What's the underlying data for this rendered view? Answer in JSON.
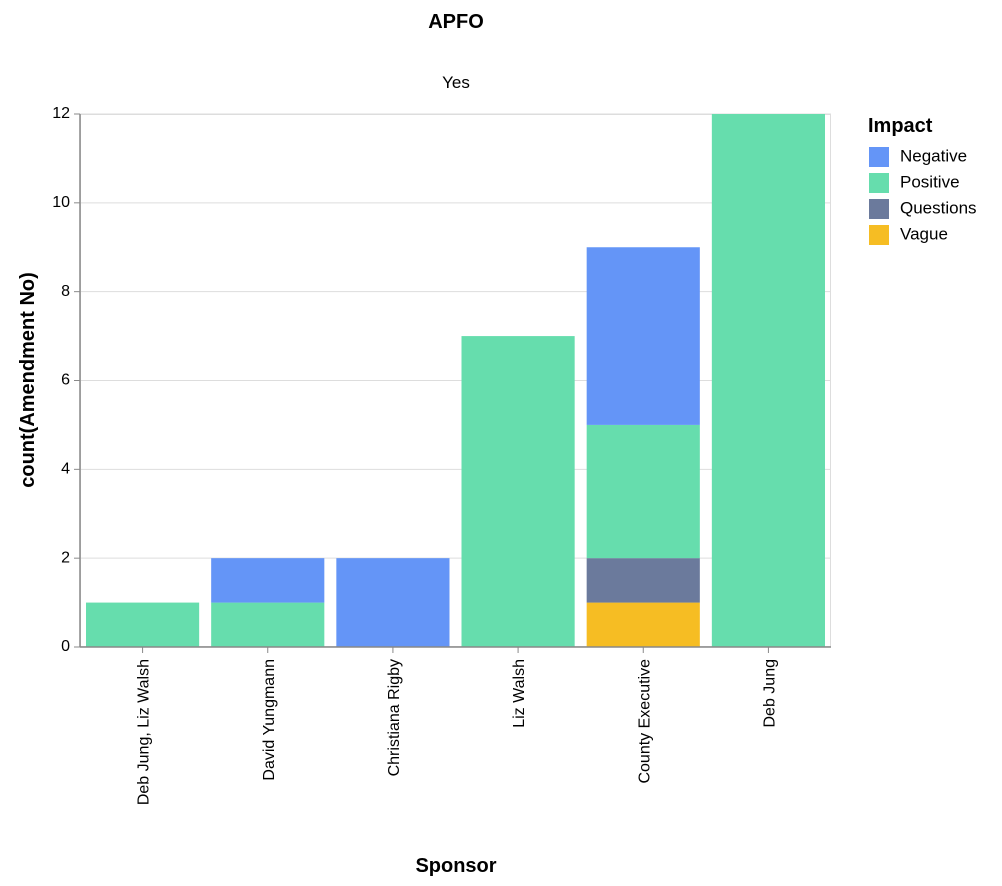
{
  "chart_data": {
    "type": "bar",
    "stacked": true,
    "title": "APFO",
    "subtitle": "Yes",
    "xlabel": "Sponsor",
    "ylabel": "count(Amendment No)",
    "ylim": [
      0,
      12
    ],
    "yticks": [
      0,
      2,
      4,
      6,
      8,
      10,
      12
    ],
    "grid": true,
    "categories": [
      "Deb Jung, Liz Walsh",
      "David Yungmann",
      "Christiana Rigby",
      "Liz Walsh",
      "County Executive",
      "Deb Jung"
    ],
    "stack_order": [
      "Vague",
      "Questions",
      "Positive",
      "Negative"
    ],
    "series": [
      {
        "name": "Negative",
        "color": "#6495f7",
        "values": [
          0,
          1,
          2,
          0,
          4,
          0
        ]
      },
      {
        "name": "Positive",
        "color": "#66ddad",
        "values": [
          1,
          1,
          0,
          7,
          3,
          12
        ]
      },
      {
        "name": "Questions",
        "color": "#6b7a9c",
        "values": [
          0,
          0,
          0,
          0,
          1,
          0
        ]
      },
      {
        "name": "Vague",
        "color": "#f6bd23",
        "values": [
          0,
          0,
          0,
          0,
          1,
          0
        ]
      }
    ],
    "legend": {
      "title": "Impact",
      "position": "right",
      "entries": [
        "Negative",
        "Positive",
        "Questions",
        "Vague"
      ]
    }
  }
}
